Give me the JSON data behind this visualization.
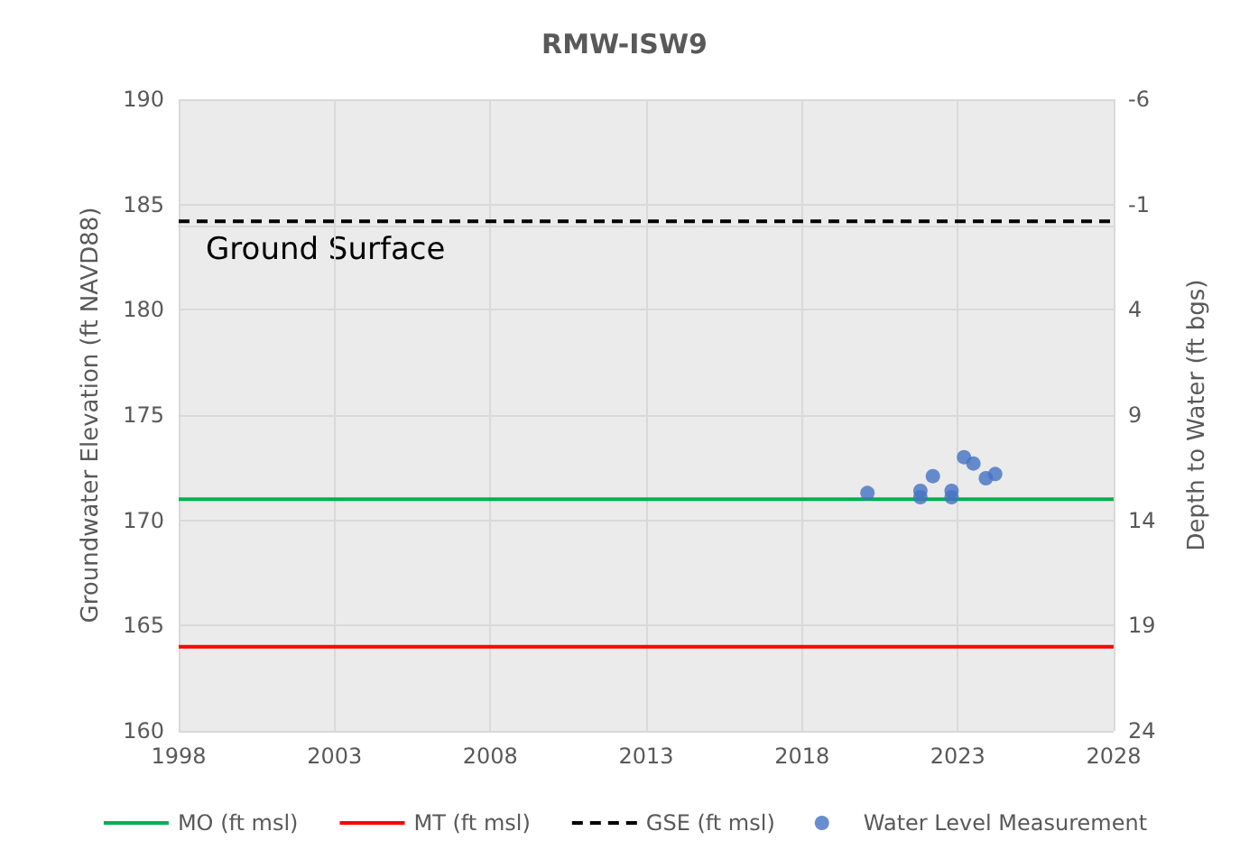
{
  "chart_data": {
    "type": "scatter",
    "title": "RMW-ISW9",
    "xlabel": null,
    "ylabel": "Groundwater Elevation (ft NAVD88)",
    "y2label": "Depth to Water (ft bgs)",
    "xlim": [
      1998,
      2028
    ],
    "xticks": [
      1998,
      2003,
      2008,
      2013,
      2018,
      2023,
      2028
    ],
    "ylim": [
      160,
      190
    ],
    "yticks": [
      160,
      165,
      170,
      175,
      180,
      185,
      190
    ],
    "y2lim": [
      24,
      -6
    ],
    "y2ticks": [
      -6,
      -1,
      4,
      9,
      14,
      19,
      24
    ],
    "grid": true,
    "legend": "bottom",
    "marker": "circle",
    "annotations": [
      "Ground Surface"
    ],
    "series": [
      {
        "name": "MO (ft msl)",
        "type": "line",
        "color": "#00b050",
        "marker": "none",
        "line_style": "solid",
        "x": [
          1998,
          2028
        ],
        "values": [
          171,
          171
        ]
      },
      {
        "name": "MT (ft msl)",
        "type": "line",
        "color": "#ff0000",
        "marker": "none",
        "line_style": "solid",
        "x": [
          1998,
          2028
        ],
        "values": [
          164,
          164
        ]
      },
      {
        "name": "GSE (ft msl)",
        "type": "line",
        "color": "#000000",
        "marker": "none",
        "line_style": "dashed",
        "x": [
          1998,
          2028
        ],
        "values": [
          184.2,
          184.2
        ]
      },
      {
        "name": "Water Level Measurement",
        "color": "#4472c4",
        "x": [
          2020.1,
          2021.8,
          2021.8,
          2022.2,
          2022.8,
          2022.8,
          2023.2,
          2023.5,
          2023.9,
          2024.2
        ],
        "values": [
          171.3,
          171.4,
          171.1,
          172.1,
          171.4,
          171.1,
          173.0,
          172.7,
          172.0,
          172.2
        ]
      }
    ]
  }
}
